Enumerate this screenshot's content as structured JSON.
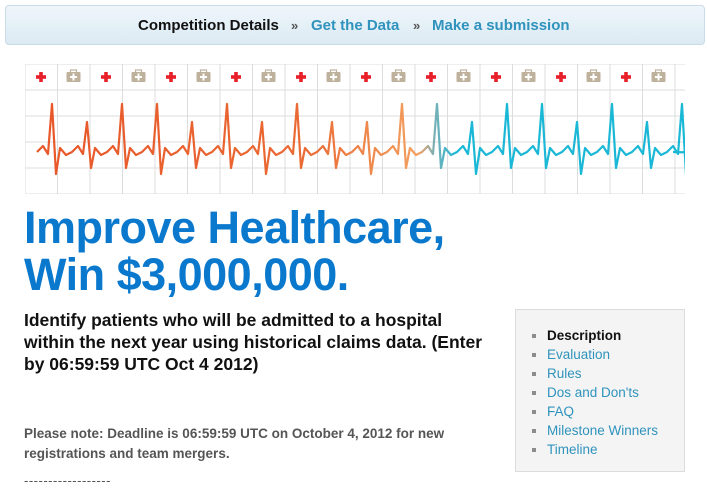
{
  "nav": {
    "items": [
      {
        "label": "Competition Details",
        "active": true
      },
      {
        "label": "Get the Data",
        "active": false
      },
      {
        "label": "Make a submission",
        "active": false
      }
    ],
    "separator": "»"
  },
  "banner": {
    "icons": [
      "cross",
      "kit",
      "cross",
      "kit",
      "cross",
      "kit",
      "cross",
      "kit",
      "cross",
      "kit",
      "cross",
      "kit",
      "cross",
      "kit",
      "cross",
      "kit",
      "cross",
      "kit",
      "cross",
      "kit"
    ],
    "colors": {
      "cross": "#e8202a",
      "kit": "#bfb29c",
      "grid": "#dcdcdc",
      "ekg_start": "#e8572a",
      "ekg_mid": "#f2a060",
      "ekg_cyan": "#1ab8d6"
    }
  },
  "headline": {
    "line1": "Improve Healthcare,",
    "line2": "Win $3,000,000."
  },
  "lead": "Identify patients who will be admitted to a hospital within the next year using historical claims data. (Enter by 06:59:59 UTC Oct 4 2012)",
  "note": "Please note: Deadline is 06:59:59 UTC on October 4, 2012 for new registrations and team mergers.",
  "divider": "------------------",
  "sidebar": {
    "items": [
      {
        "label": "Description",
        "current": true
      },
      {
        "label": "Evaluation",
        "current": false
      },
      {
        "label": "Rules",
        "current": false
      },
      {
        "label": "Dos and Don'ts",
        "current": false
      },
      {
        "label": "FAQ",
        "current": false
      },
      {
        "label": "Milestone Winners",
        "current": false
      },
      {
        "label": "Timeline",
        "current": false
      }
    ]
  }
}
